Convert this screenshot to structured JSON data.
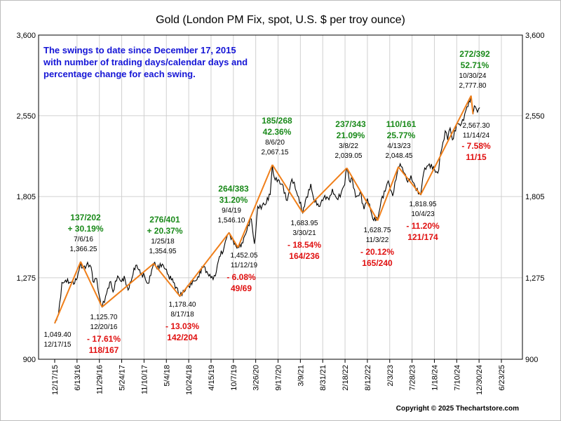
{
  "chart_data": {
    "type": "line",
    "title": "Gold (London PM Fix, spot, U.S. $ per troy ounce)",
    "note_lines": [
      "The swings to date since December 17, 2015",
      "with number of trading days/calendar days and",
      "percentage change for each swing."
    ],
    "copyright": "Copyright © 2025 Thechartstore.com",
    "ylim": [
      900,
      3600
    ],
    "y_ticks": [
      900,
      1275,
      1805,
      2550,
      3600
    ],
    "y_tick_labels": [
      "900",
      "1,275",
      "1,805",
      "2,550",
      "3,600"
    ],
    "x_ticks": [
      "12/17/15",
      "6/13/16",
      "11/29/16",
      "5/24/17",
      "11/10/17",
      "5/4/18",
      "10/24/18",
      "4/15/19",
      "10/7/19",
      "3/26/20",
      "9/17/20",
      "3/9/21",
      "8/31/21",
      "2/18/22",
      "8/12/22",
      "2/3/23",
      "7/28/23",
      "1/18/24",
      "7/10/24",
      "12/30/24",
      "6/23/25"
    ],
    "swing_points": [
      {
        "date": "2015-12-17",
        "label_date": "12/17/15",
        "price": 1049.4,
        "price_label": "1,049.40"
      },
      {
        "date": "2016-07-06",
        "label_date": "7/6/16",
        "price": 1366.25,
        "price_label": "1,366.25"
      },
      {
        "date": "2016-12-20",
        "label_date": "12/20/16",
        "price": 1125.7,
        "price_label": "1,125.70"
      },
      {
        "date": "2018-01-25",
        "label_date": "1/25/18",
        "price": 1354.95,
        "price_label": "1,354.95"
      },
      {
        "date": "2018-08-17",
        "label_date": "8/17/18",
        "price": 1178.4,
        "price_label": "1,178.40"
      },
      {
        "date": "2019-09-04",
        "label_date": "9/4/19",
        "price": 1546.1,
        "price_label": "1,546.10"
      },
      {
        "date": "2019-11-12",
        "label_date": "11/12/19",
        "price": 1452.05,
        "price_label": "1,452.05"
      },
      {
        "date": "2020-08-06",
        "label_date": "8/6/20",
        "price": 2067.15,
        "price_label": "2,067.15"
      },
      {
        "date": "2021-03-30",
        "label_date": "3/30/21",
        "price": 1683.95,
        "price_label": "1,683.95"
      },
      {
        "date": "2022-03-08",
        "label_date": "3/8/22",
        "price": 2039.05,
        "price_label": "2,039.05"
      },
      {
        "date": "2022-11-03",
        "label_date": "11/3/22",
        "price": 1628.75,
        "price_label": "1,628.75"
      },
      {
        "date": "2023-04-13",
        "label_date": "4/13/23",
        "price": 2048.45,
        "price_label": "2,048.45"
      },
      {
        "date": "2023-10-04",
        "label_date": "10/4/23",
        "price": 1818.95,
        "price_label": "1,818.95"
      },
      {
        "date": "2024-10-30",
        "label_date": "10/30/24",
        "price": 2777.8,
        "price_label": "2,777.80"
      },
      {
        "date": "2024-11-14",
        "label_date": "11/14/24",
        "price": 2567.3,
        "price_label": "2,567.30"
      }
    ],
    "swings": [
      {
        "days": "137/202",
        "pct": "+ 30.19%",
        "dir": "up"
      },
      {
        "days": "118/167",
        "pct": "- 17.61%",
        "dir": "down"
      },
      {
        "days": "276/401",
        "pct": "+ 20.37%",
        "dir": "up"
      },
      {
        "days": "142/204",
        "pct": "- 13.03%",
        "dir": "down"
      },
      {
        "days": "264/383",
        "pct": "31.20%",
        "dir": "up"
      },
      {
        "days": "49/69",
        "pct": "- 6.08%",
        "dir": "down"
      },
      {
        "days": "185/268",
        "pct": "42.36%",
        "dir": "up"
      },
      {
        "days": "164/236",
        "pct": "- 18.54%",
        "dir": "down"
      },
      {
        "days": "237/343",
        "pct": "21.09%",
        "dir": "up"
      },
      {
        "days": "165/240",
        "pct": "- 20.12%",
        "dir": "down"
      },
      {
        "days": "110/161",
        "pct": "25.77%",
        "dir": "up"
      },
      {
        "days": "121/174",
        "pct": "- 11.20%",
        "dir": "down"
      },
      {
        "days": "272/392",
        "pct": "52.71%",
        "dir": "up"
      },
      {
        "days": "11/15",
        "pct": "- 7.58%",
        "dir": "down"
      }
    ],
    "series": [
      {
        "values": [
          [
            "2015-12-17",
            1049
          ],
          [
            "2016-01-15",
            1090
          ],
          [
            "2016-02-11",
            1250
          ],
          [
            "2016-03-10",
            1262
          ],
          [
            "2016-04-20",
            1250
          ],
          [
            "2016-05-20",
            1245
          ],
          [
            "2016-06-10",
            1275
          ],
          [
            "2016-06-24",
            1318
          ],
          [
            "2016-07-06",
            1366
          ],
          [
            "2016-07-20",
            1330
          ],
          [
            "2016-08-20",
            1345
          ],
          [
            "2016-09-25",
            1335
          ],
          [
            "2016-10-10",
            1255
          ],
          [
            "2016-11-08",
            1270
          ],
          [
            "2016-11-20",
            1205
          ],
          [
            "2016-12-20",
            1126
          ],
          [
            "2017-01-25",
            1195
          ],
          [
            "2017-02-25",
            1255
          ],
          [
            "2017-03-15",
            1200
          ],
          [
            "2017-04-20",
            1285
          ],
          [
            "2017-05-20",
            1255
          ],
          [
            "2017-06-10",
            1285
          ],
          [
            "2017-07-10",
            1210
          ],
          [
            "2017-08-10",
            1275
          ],
          [
            "2017-09-08",
            1345
          ],
          [
            "2017-10-15",
            1295
          ],
          [
            "2017-11-15",
            1285
          ],
          [
            "2017-12-12",
            1245
          ],
          [
            "2018-01-10",
            1320
          ],
          [
            "2018-01-25",
            1355
          ],
          [
            "2018-02-20",
            1325
          ],
          [
            "2018-04-10",
            1345
          ],
          [
            "2018-05-20",
            1290
          ],
          [
            "2018-06-20",
            1270
          ],
          [
            "2018-07-20",
            1225
          ],
          [
            "2018-08-17",
            1178
          ],
          [
            "2018-09-20",
            1200
          ],
          [
            "2018-10-25",
            1230
          ],
          [
            "2018-12-20",
            1260
          ],
          [
            "2019-02-20",
            1340
          ],
          [
            "2019-04-15",
            1275
          ],
          [
            "2019-05-20",
            1285
          ],
          [
            "2019-06-20",
            1395
          ],
          [
            "2019-07-20",
            1425
          ],
          [
            "2019-08-15",
            1510
          ],
          [
            "2019-09-04",
            1546
          ],
          [
            "2019-10-05",
            1495
          ],
          [
            "2019-11-12",
            1452
          ],
          [
            "2019-12-20",
            1480
          ],
          [
            "2020-01-20",
            1560
          ],
          [
            "2020-02-24",
            1640
          ],
          [
            "2020-03-19",
            1475
          ],
          [
            "2020-04-14",
            1730
          ],
          [
            "2020-05-20",
            1740
          ],
          [
            "2020-06-20",
            1755
          ],
          [
            "2020-07-20",
            1820
          ],
          [
            "2020-08-06",
            2067
          ],
          [
            "2020-08-20",
            1960
          ],
          [
            "2020-09-20",
            1940
          ],
          [
            "2020-10-20",
            1905
          ],
          [
            "2020-11-30",
            1775
          ],
          [
            "2021-01-05",
            1945
          ],
          [
            "2021-02-10",
            1840
          ],
          [
            "2021-03-30",
            1684
          ],
          [
            "2021-04-20",
            1775
          ],
          [
            "2021-06-01",
            1905
          ],
          [
            "2021-06-25",
            1780
          ],
          [
            "2021-08-10",
            1730
          ],
          [
            "2021-09-10",
            1795
          ],
          [
            "2021-10-20",
            1780
          ],
          [
            "2021-11-16",
            1865
          ],
          [
            "2021-12-20",
            1790
          ],
          [
            "2022-01-25",
            1840
          ],
          [
            "2022-02-20",
            1900
          ],
          [
            "2022-03-08",
            2039
          ],
          [
            "2022-03-28",
            1930
          ],
          [
            "2022-04-20",
            1950
          ],
          [
            "2022-05-16",
            1800
          ],
          [
            "2022-06-20",
            1840
          ],
          [
            "2022-07-20",
            1710
          ],
          [
            "2022-08-15",
            1790
          ],
          [
            "2022-09-26",
            1640
          ],
          [
            "2022-11-03",
            1629
          ],
          [
            "2022-12-01",
            1780
          ],
          [
            "2023-01-25",
            1930
          ],
          [
            "2023-02-28",
            1810
          ],
          [
            "2023-04-13",
            2048
          ],
          [
            "2023-05-05",
            2050
          ],
          [
            "2023-06-25",
            1920
          ],
          [
            "2023-07-20",
            1975
          ],
          [
            "2023-08-20",
            1890
          ],
          [
            "2023-10-04",
            1819
          ],
          [
            "2023-10-27",
            1995
          ],
          [
            "2023-12-01",
            2060
          ],
          [
            "2024-01-20",
            2025
          ],
          [
            "2024-02-14",
            1995
          ],
          [
            "2024-03-08",
            2175
          ],
          [
            "2024-04-12",
            2390
          ],
          [
            "2024-05-01",
            2300
          ],
          [
            "2024-05-20",
            2420
          ],
          [
            "2024-06-07",
            2300
          ],
          [
            "2024-07-17",
            2470
          ],
          [
            "2024-08-15",
            2460
          ],
          [
            "2024-09-20",
            2610
          ],
          [
            "2024-10-30",
            2778
          ],
          [
            "2024-11-14",
            2567
          ],
          [
            "2024-11-25",
            2660
          ],
          [
            "2024-12-19",
            2590
          ],
          [
            "2025-01-06",
            2640
          ]
        ]
      }
    ],
    "colors": {
      "price": "#000000",
      "swing": "#f07f1a",
      "up": "#1a8a1a",
      "down": "#e01010",
      "note": "#1515d6",
      "grid": "#d0d0d0"
    }
  }
}
